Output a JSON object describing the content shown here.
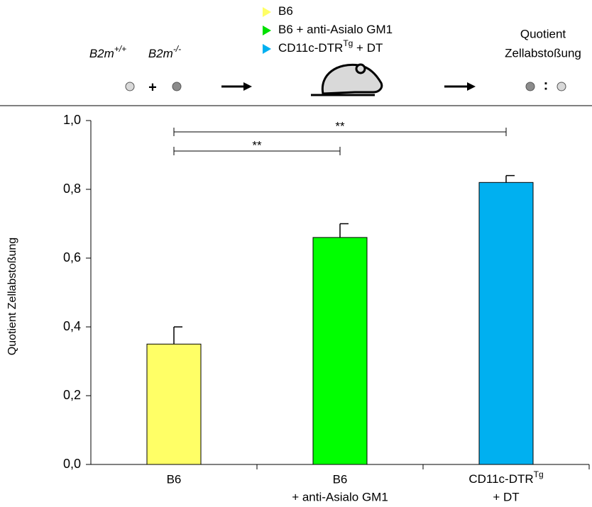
{
  "header": {
    "left_labels": [
      {
        "text": "B2m",
        "sup": "+/+"
      },
      {
        "text": "B2m",
        "sup": "-/-"
      }
    ],
    "plus": "+",
    "legend": [
      {
        "text": "B6",
        "color": "#ffff66"
      },
      {
        "text": "B6 + anti-Asialo GM1",
        "color": "#00e000"
      },
      {
        "text": "CD11c-DTR",
        "sup": "Tg",
        "after": " + DT",
        "color": "#00b0f0"
      }
    ],
    "right_label": [
      "Quotient",
      "Zellabstoßung"
    ],
    "colon": ":"
  },
  "chart_data": {
    "type": "bar",
    "y_label": "Quotient Zellabstoßung",
    "categories": [
      [
        "B6"
      ],
      [
        "B6",
        "+ anti-Asialo GM1"
      ],
      [
        {
          "text": "CD11c-DTR",
          "sup": "Tg"
        },
        "+ DT"
      ]
    ],
    "values": [
      0.35,
      0.66,
      0.82
    ],
    "errors": [
      0.05,
      0.04,
      0.02
    ],
    "colors": [
      "#ffff66",
      "#00ff00",
      "#00b0f0"
    ],
    "ylim": [
      0,
      1
    ],
    "yticks": [
      {
        "value": 0,
        "label": "0,0"
      },
      {
        "value": 0.2,
        "label": "0,2"
      },
      {
        "value": 0.4,
        "label": "0,4"
      },
      {
        "value": 0.6,
        "label": "0,6"
      },
      {
        "value": 0.8,
        "label": "0,8"
      },
      {
        "value": 1,
        "label": "1,0"
      }
    ],
    "significance": [
      {
        "categories": [
          0,
          2
        ],
        "label": "**"
      },
      {
        "categories": [
          0,
          1
        ],
        "label": "**"
      }
    ]
  }
}
